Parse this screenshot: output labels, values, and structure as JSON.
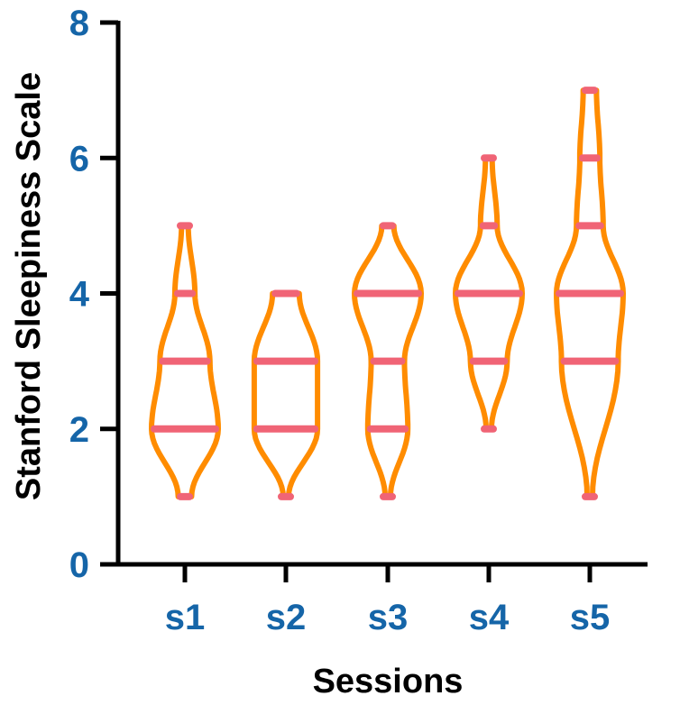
{
  "chart_data": {
    "type": "violin",
    "xlabel": "Sessions",
    "ylabel": "Stanford Sleepiness Scale",
    "ylim": [
      0,
      8
    ],
    "yticks": [
      "0",
      "2",
      "4",
      "6",
      "8"
    ],
    "categories": [
      "s1",
      "s2",
      "s3",
      "s4",
      "s5"
    ],
    "grid": false,
    "legend": "none",
    "series": [
      {
        "category": "s1",
        "levels": [
          {
            "y": 1,
            "width": 0.2
          },
          {
            "y": 2,
            "width": 1.0
          },
          {
            "y": 3,
            "width": 0.75
          },
          {
            "y": 4,
            "width": 0.3
          },
          {
            "y": 5,
            "width": 0.1
          }
        ]
      },
      {
        "category": "s2",
        "levels": [
          {
            "y": 1,
            "width": 0.08
          },
          {
            "y": 2,
            "width": 0.95
          },
          {
            "y": 3,
            "width": 0.95
          },
          {
            "y": 4,
            "width": 0.4
          }
        ]
      },
      {
        "category": "s3",
        "levels": [
          {
            "y": 1,
            "width": 0.08
          },
          {
            "y": 2,
            "width": 0.6
          },
          {
            "y": 3,
            "width": 0.5
          },
          {
            "y": 4,
            "width": 1.0
          },
          {
            "y": 5,
            "width": 0.18
          }
        ]
      },
      {
        "category": "s4",
        "levels": [
          {
            "y": 2,
            "width": 0.08
          },
          {
            "y": 3,
            "width": 0.55
          },
          {
            "y": 4,
            "width": 1.0
          },
          {
            "y": 5,
            "width": 0.25
          },
          {
            "y": 6,
            "width": 0.1
          }
        ]
      },
      {
        "category": "s5",
        "levels": [
          {
            "y": 1,
            "width": 0.08
          },
          {
            "y": 3,
            "width": 0.85
          },
          {
            "y": 4,
            "width": 1.0
          },
          {
            "y": 5,
            "width": 0.4
          },
          {
            "y": 6,
            "width": 0.3
          },
          {
            "y": 7,
            "width": 0.2
          }
        ]
      }
    ],
    "colors": {
      "violin": "#ff8c00",
      "points": "#f06476",
      "axis": "#000000",
      "tick_labels": "#1565a8"
    }
  }
}
